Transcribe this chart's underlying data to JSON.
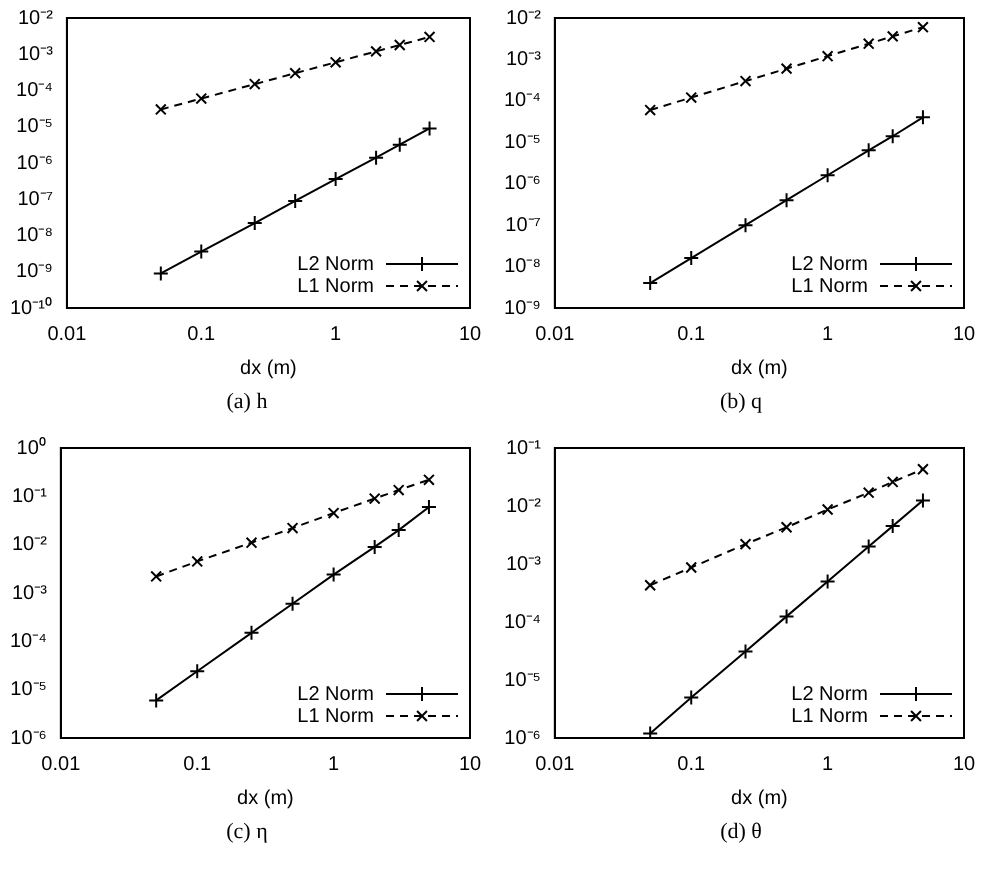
{
  "chart_data": [
    {
      "type": "line",
      "title": "(a) h",
      "xlabel": "dx (m)",
      "log": "xy",
      "legend": "bottom right",
      "x": [
        0.05,
        0.1,
        0.25,
        0.5,
        1,
        2,
        3,
        5
      ],
      "xlim": [
        0.01,
        10
      ],
      "xticks": [
        0.01,
        0.1,
        1,
        10
      ],
      "ylim": [
        1e-10,
        0.01
      ],
      "yticks": [
        {
          "value": 1e-10,
          "label": "10⁻¹⁰"
        },
        {
          "value": 1e-09,
          "label": "10⁻⁹"
        },
        {
          "value": 1e-08,
          "label": "10⁻⁸"
        },
        {
          "value": 1e-07,
          "label": "10⁻⁷"
        },
        {
          "value": 1e-06,
          "label": "10⁻⁶"
        },
        {
          "value": 1e-05,
          "label": "10⁻⁵"
        },
        {
          "value": 0.0001,
          "label": "10⁻⁴"
        },
        {
          "value": 0.001,
          "label": "10⁻³"
        },
        {
          "value": 0.01,
          "label": "10⁻²"
        }
      ],
      "series": [
        {
          "name": "L2 Norm",
          "color": "#000000",
          "line_style": "solid",
          "marker": "cross",
          "values": [
            9e-10,
            3.6e-09,
            2.2e-08,
            9e-08,
            3.6e-07,
            1.4e-06,
            3.2e-06,
            9e-06
          ]
        },
        {
          "name": "L1 Norm",
          "color": "#000000",
          "line_style": "dashed",
          "marker": "cross",
          "values": [
            3e-05,
            6e-05,
            0.00015,
            0.0003,
            0.0006,
            0.0012,
            0.0018,
            0.003
          ]
        }
      ]
    },
    {
      "type": "line",
      "title": "(b) q",
      "xlabel": "dx (m)",
      "log": "xy",
      "legend": "bottom right",
      "x": [
        0.05,
        0.1,
        0.25,
        0.5,
        1,
        2,
        3,
        5
      ],
      "xlim": [
        0.01,
        10
      ],
      "xticks": [
        0.01,
        0.1,
        1,
        10
      ],
      "ylim": [
        1e-09,
        0.01
      ],
      "yticks": [
        {
          "value": 1e-09,
          "label": "10⁻⁹"
        },
        {
          "value": 1e-08,
          "label": "10⁻⁸"
        },
        {
          "value": 1e-07,
          "label": "10⁻⁷"
        },
        {
          "value": 1e-06,
          "label": "10⁻⁶"
        },
        {
          "value": 1e-05,
          "label": "10⁻⁵"
        },
        {
          "value": 0.0001,
          "label": "10⁻⁴"
        },
        {
          "value": 0.001,
          "label": "10⁻³"
        },
        {
          "value": 0.01,
          "label": "10⁻²"
        }
      ],
      "series": [
        {
          "name": "L2 Norm",
          "color": "#000000",
          "line_style": "solid",
          "marker": "cross",
          "values": [
            4e-09,
            1.6e-08,
            1e-07,
            4e-07,
            1.6e-06,
            6.4e-06,
            1.4e-05,
            4e-05
          ]
        },
        {
          "name": "L1 Norm",
          "color": "#000000",
          "line_style": "dashed",
          "marker": "cross",
          "values": [
            6e-05,
            0.00012,
            0.0003,
            0.0006,
            0.0012,
            0.0024,
            0.0036,
            0.006
          ]
        }
      ]
    },
    {
      "type": "line",
      "title": "(c) η",
      "xlabel": "dx (m)",
      "log": "xy",
      "legend": "bottom right",
      "x": [
        0.05,
        0.1,
        0.25,
        0.5,
        1,
        2,
        3,
        5
      ],
      "xlim": [
        0.01,
        10
      ],
      "xticks": [
        0.01,
        0.1,
        1,
        10
      ],
      "ylim": [
        1e-06,
        1
      ],
      "yticks": [
        {
          "value": 1e-06,
          "label": "10⁻⁶"
        },
        {
          "value": 1e-05,
          "label": "10⁻⁵"
        },
        {
          "value": 0.0001,
          "label": "10⁻⁴"
        },
        {
          "value": 0.001,
          "label": "10⁻³"
        },
        {
          "value": 0.01,
          "label": "10⁻²"
        },
        {
          "value": 0.1,
          "label": "10⁻¹"
        },
        {
          "value": 1,
          "label": "10⁰"
        }
      ],
      "series": [
        {
          "name": "L2 Norm",
          "color": "#000000",
          "line_style": "solid",
          "marker": "cross",
          "values": [
            6e-06,
            2.4e-05,
            0.00015,
            0.0006,
            0.0024,
            0.009,
            0.02,
            0.06
          ]
        },
        {
          "name": "L1 Norm",
          "color": "#000000",
          "line_style": "dashed",
          "marker": "cross",
          "values": [
            0.0022,
            0.0045,
            0.011,
            0.022,
            0.045,
            0.09,
            0.135,
            0.22
          ]
        }
      ]
    },
    {
      "type": "line",
      "title": "(d) θ",
      "xlabel": "dx (m)",
      "log": "xy",
      "legend": "bottom right",
      "x": [
        0.05,
        0.1,
        0.25,
        0.5,
        1,
        2,
        3,
        5
      ],
      "xlim": [
        0.01,
        10
      ],
      "xticks": [
        0.01,
        0.1,
        1,
        10
      ],
      "ylim": [
        1e-06,
        0.1
      ],
      "yticks": [
        {
          "value": 1e-06,
          "label": "10⁻⁶"
        },
        {
          "value": 1e-05,
          "label": "10⁻⁵"
        },
        {
          "value": 0.0001,
          "label": "10⁻⁴"
        },
        {
          "value": 0.001,
          "label": "10⁻³"
        },
        {
          "value": 0.01,
          "label": "10⁻²"
        },
        {
          "value": 0.1,
          "label": "10⁻¹"
        }
      ],
      "series": [
        {
          "name": "L2 Norm",
          "color": "#000000",
          "line_style": "solid",
          "marker": "cross",
          "values": [
            1.2e-06,
            5e-06,
            3.1e-05,
            0.000125,
            0.0005,
            0.002,
            0.0045,
            0.0125
          ]
        },
        {
          "name": "L1 Norm",
          "color": "#000000",
          "line_style": "dashed",
          "marker": "cross",
          "values": [
            0.00043,
            0.00087,
            0.0022,
            0.0043,
            0.0087,
            0.017,
            0.026,
            0.043
          ]
        }
      ]
    }
  ]
}
